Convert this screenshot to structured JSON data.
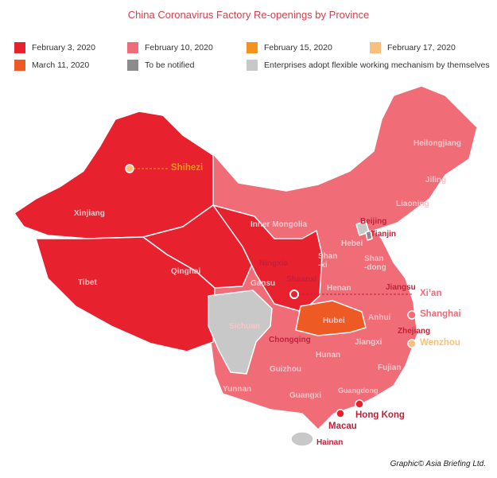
{
  "title": "China Coronavirus Factory Re-openings by Province",
  "legend": [
    {
      "label": "February 3, 2020",
      "color": "#e8212e"
    },
    {
      "label": "February 10, 2020",
      "color": "#f06d78"
    },
    {
      "label": "February 15, 2020",
      "color": "#f5921e"
    },
    {
      "label": "February 17, 2020",
      "color": "#f8c07a"
    },
    {
      "label": "March 11, 2020",
      "color": "#ee5a24"
    },
    {
      "label": "To be notified",
      "color": "#8c8c8c"
    },
    {
      "label": "Enterprises adopt flexible working mechanism by themselves",
      "color": "#c8c8c8"
    }
  ],
  "regions": {
    "xinjiang": "Xinjiang",
    "tibet": "Tibet",
    "qinghai": "Qinghai",
    "gansu": "Gansu",
    "ningxia": "Ningxia",
    "shaanxi": "Shaanxi",
    "inner_mongolia": "Inner Mongolia",
    "heilongjiang": "Heilongjiang",
    "jilin": "Jiling",
    "liaoning": "Liaoning",
    "beijing": "Beijing",
    "tianjin": "Tianjin",
    "hebei": "Hebei",
    "shanxi": "Shan\n-xi",
    "shandong": "Shan\n-dong",
    "henan": "Henan",
    "jiangsu": "Jiangsu",
    "anhui": "Anhui",
    "hubei": "Hubei",
    "sichuan": "Sichuan",
    "chongqing": "Chongqing",
    "zhejiang": "Zhejiang",
    "jiangxi": "Jiangxi",
    "hunan": "Hunan",
    "guizhou": "Guizhou",
    "yunnan": "Yunnan",
    "guangxi": "Guangxi",
    "guangdong": "Guangdong",
    "fujian": "Fujian",
    "hainan": "Hainan"
  },
  "cities": {
    "shihezi": "Shihezi",
    "xian": "Xi’an",
    "shanghai": "Shanghai",
    "wenzhou": "Wenzhou",
    "hong_kong": "Hong Kong",
    "macau": "Macau"
  },
  "credit": "Graphic© Asia Briefing Ltd."
}
